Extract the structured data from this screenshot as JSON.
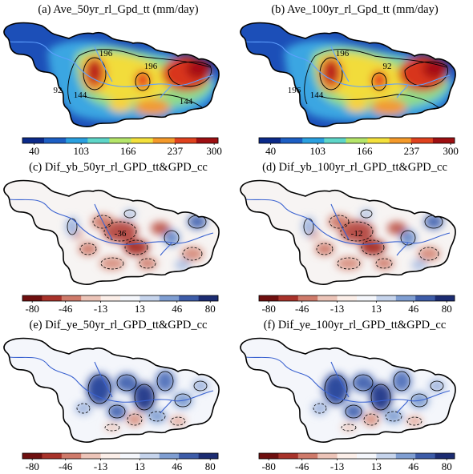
{
  "panels": [
    {
      "title": "(a) Ave_50yr_rl_Gpd_tt (mm/day)",
      "contour_labels": [
        "196",
        "144",
        "92",
        "196",
        "144"
      ]
    },
    {
      "title": "(b) Ave_100yr_rl_Gpd_tt (mm/day)",
      "contour_labels": [
        "196",
        "144",
        "196",
        "92"
      ]
    },
    {
      "title": "(c) Dif_yb_50yr_rl_GPD_tt&GPD_cc",
      "contour_labels": [
        "-36"
      ]
    },
    {
      "title": "(d) Dif_yb_100yr_rl_GPD_tt&GPD_cc",
      "contour_labels": [
        "-12"
      ]
    },
    {
      "title": "(e) Dif_ye_50yr_rl_GPD_tt&GPD_cc",
      "contour_labels": []
    },
    {
      "title": "(f) Dif_ye_100yr_rl_GPD_tt&GPD_cc",
      "contour_labels": []
    }
  ],
  "colorbars": {
    "average": {
      "ticks": [
        "40",
        "103",
        "166",
        "237",
        "300"
      ],
      "colors": [
        "#0b2a8a",
        "#1d5fc4",
        "#2aa0e0",
        "#5ed6c8",
        "#b5e66a",
        "#f4e13c",
        "#f59a2a",
        "#e0421e",
        "#9e0f12"
      ]
    },
    "difference": {
      "ticks": [
        "-80",
        "-46",
        "-13",
        "13",
        "46",
        "80"
      ],
      "colors": [
        "#6e0f0f",
        "#a8322a",
        "#cf7a6a",
        "#ecc4b8",
        "#fbeee8",
        "#f4f6fb",
        "#c6d4ec",
        "#7f9ed2",
        "#3d5ca8",
        "#1c2c72"
      ]
    }
  }
}
